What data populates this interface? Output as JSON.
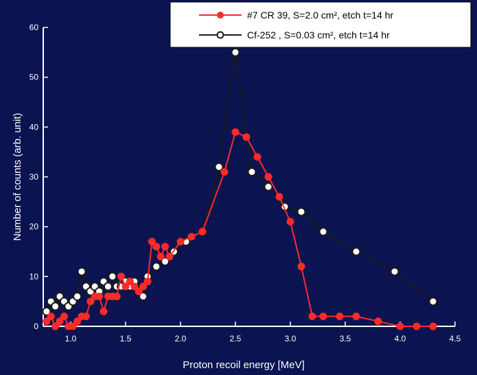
{
  "chart_data": {
    "type": "line",
    "title": "",
    "xlabel": "Proton recoil energy [MeV]",
    "ylabel": "Number of counts (arb. unit)",
    "xlim": [
      0.75,
      4.5
    ],
    "ylim": [
      0,
      60
    ],
    "xticks": [
      "1.0",
      "1.5",
      "2.0",
      "2.5",
      "3.0",
      "3.5",
      "4.0",
      "4.5"
    ],
    "yticks": [
      "0",
      "10",
      "20",
      "30",
      "40",
      "50",
      "60"
    ],
    "grid": false,
    "legend_position": "top-right",
    "series": [
      {
        "name": "#7 CR 39, S=2.0 cm², etch t=14 hr",
        "color": "#ff2a2a",
        "marker": "filled-circle",
        "x": [
          0.78,
          0.82,
          0.86,
          0.9,
          0.94,
          0.98,
          1.02,
          1.06,
          1.1,
          1.14,
          1.18,
          1.22,
          1.26,
          1.3,
          1.34,
          1.38,
          1.42,
          1.46,
          1.5,
          1.54,
          1.58,
          1.62,
          1.66,
          1.7,
          1.74,
          1.78,
          1.82,
          1.86,
          1.9,
          2.0,
          2.1,
          2.2,
          2.4,
          2.5,
          2.6,
          2.7,
          2.8,
          2.9,
          3.0,
          3.1,
          3.2,
          3.3,
          3.45,
          3.6,
          3.8,
          4.0,
          4.15,
          4.3
        ],
        "y": [
          1,
          2,
          0,
          1,
          2,
          0,
          0,
          1,
          2,
          2,
          5,
          6,
          6,
          3,
          6,
          6,
          6,
          10,
          8,
          9,
          8,
          7,
          8,
          9,
          17,
          16,
          14,
          16,
          14,
          17,
          18,
          19,
          31,
          39,
          38,
          34,
          30,
          26,
          21,
          12,
          2,
          2,
          2,
          2,
          1,
          0,
          0,
          0
        ]
      },
      {
        "name": "Cf-252 , S=0.03 cm², etch t=14 hr",
        "color": "#1a1a1a",
        "marker": "open-circle",
        "x": [
          0.78,
          0.82,
          0.86,
          0.9,
          0.94,
          0.98,
          1.02,
          1.06,
          1.1,
          1.14,
          1.18,
          1.22,
          1.26,
          1.3,
          1.34,
          1.38,
          1.42,
          1.46,
          1.5,
          1.54,
          1.58,
          1.62,
          1.66,
          1.7,
          1.78,
          1.86,
          1.94,
          2.05,
          2.2,
          2.35,
          2.5,
          2.65,
          2.8,
          2.95,
          3.1,
          3.3,
          3.6,
          3.95,
          4.3
        ],
        "y": [
          3,
          5,
          4,
          6,
          5,
          4,
          5,
          6,
          11,
          8,
          7,
          8,
          7,
          9,
          8,
          10,
          8,
          8,
          9,
          8,
          9,
          7,
          6,
          10,
          12,
          13,
          15,
          17,
          19,
          32,
          55,
          31,
          28,
          24,
          23,
          19,
          15,
          11,
          5
        ]
      }
    ]
  }
}
